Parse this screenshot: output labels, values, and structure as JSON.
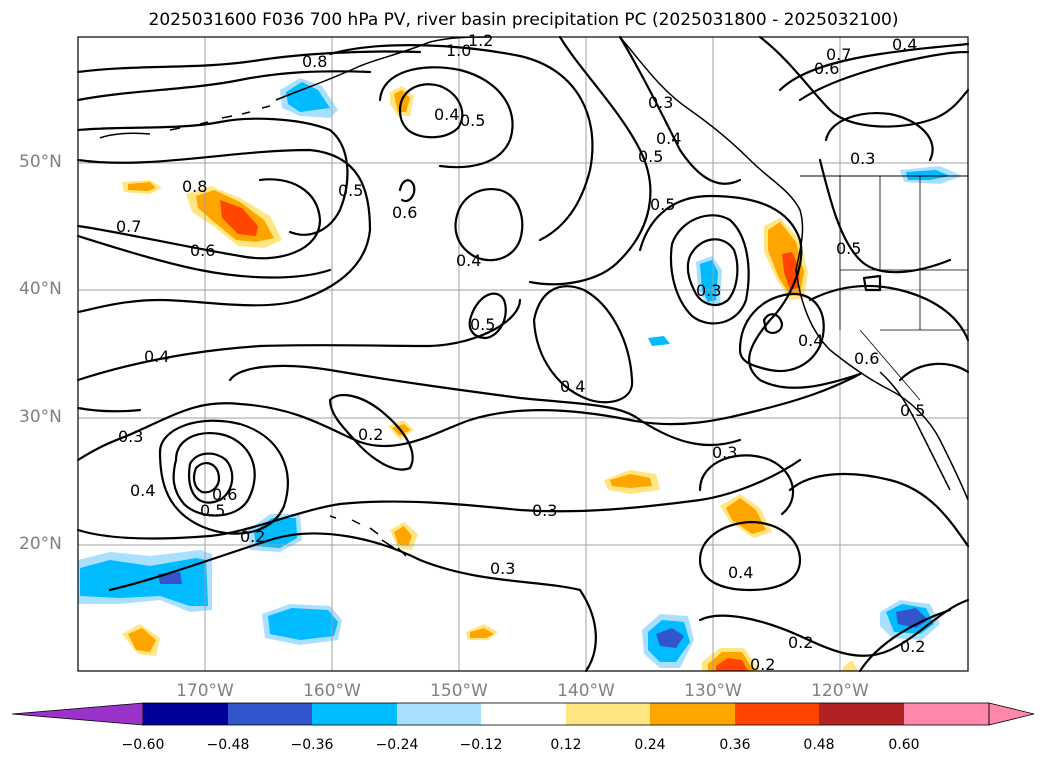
{
  "title": "2025031600 F036 700 hPa PV, river basin precipitation PC (2025031800 - 2025032100)",
  "map": {
    "lat_labels": [
      "50°N",
      "40°N",
      "30°N",
      "20°N"
    ],
    "lon_labels": [
      "170°W",
      "160°W",
      "150°W",
      "140°W",
      "130°W",
      "120°W"
    ],
    "grid_visible": true,
    "coastline_color": "#000000",
    "grid_color": "#a0a0a0"
  },
  "contour_labels": [
    "0.8",
    "1.0",
    "1.2",
    "0.4",
    "0.5",
    "0.7",
    "0.6",
    "0.8",
    "0.5",
    "0.4",
    "0.3",
    "0.5",
    "0.6",
    "0.4",
    "0.5",
    "0.4",
    "0.7",
    "0.6",
    "0.4",
    "0.3",
    "0.3",
    "0.3",
    "0.5",
    "0.2",
    "0.3",
    "0.4",
    "0.6",
    "0.5",
    "0.2",
    "0.3",
    "0.3",
    "0.4",
    "0.2",
    "0.2",
    "0.2",
    "0.4",
    "0.5",
    "0.4",
    "0.6",
    "0.5"
  ],
  "colorbar": {
    "colors": [
      "#9933cc",
      "#000099",
      "#3355cc",
      "#00bbff",
      "#aae0ff",
      "#ffffff",
      "#ffe680",
      "#ffa500",
      "#ff4500",
      "#b22222",
      "#ff88aa"
    ],
    "ticks": [
      "−0.60",
      "−0.48",
      "−0.36",
      "−0.24",
      "−0.12",
      "0.12",
      "0.24",
      "0.36",
      "0.48",
      "0.60"
    ]
  }
}
